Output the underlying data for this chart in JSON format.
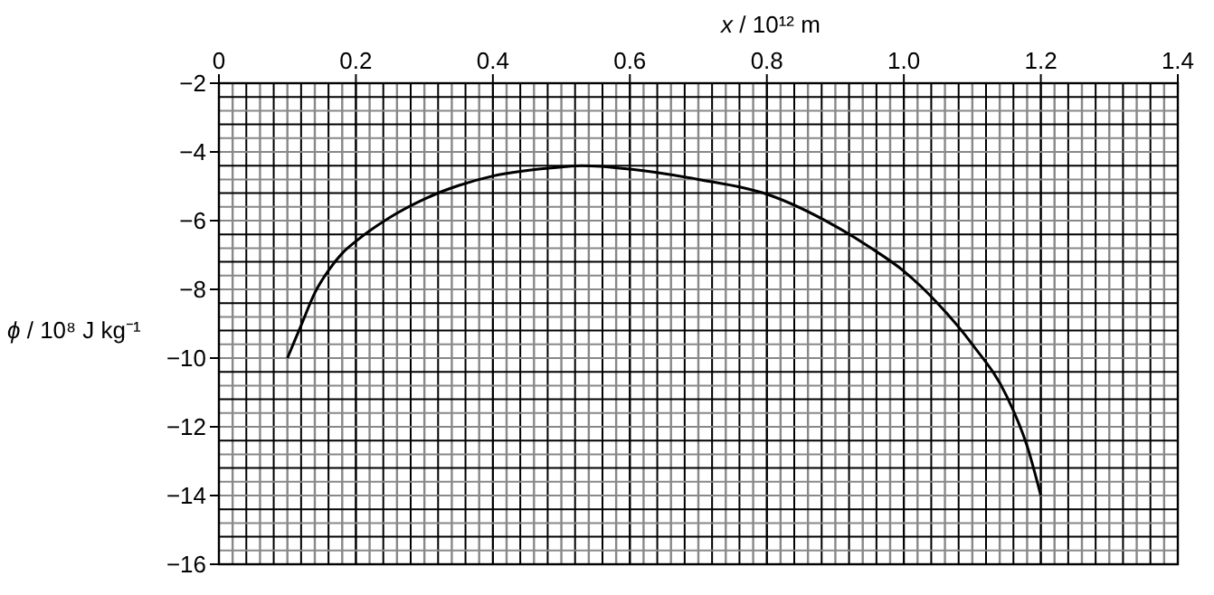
{
  "chart_data": {
    "type": "line",
    "xlabel": "x / 10¹² m",
    "ylabel": "ϕ / 10⁸ J kg⁻¹",
    "xlim": [
      0,
      1.4
    ],
    "ylim": [
      -16,
      -2
    ],
    "xticks": [
      0,
      0.2,
      0.4,
      0.6,
      0.8,
      {
        "value": 1,
        "label": "1.0"
      },
      1.2,
      1.4
    ],
    "yticks": [
      {
        "value": -2,
        "label": "−2"
      },
      {
        "value": -4,
        "label": "−4"
      },
      {
        "value": -6,
        "label": "−6"
      },
      {
        "value": -8,
        "label": "−8"
      },
      {
        "value": -10,
        "label": "−10"
      },
      {
        "value": -12,
        "label": "−12"
      },
      {
        "value": -14,
        "label": "−14"
      },
      {
        "value": -16,
        "label": "−16"
      }
    ],
    "grid": true,
    "marker": "none",
    "line_style": "solid",
    "series": [
      {
        "color": "#000000",
        "x": [
          0.1,
          0.12,
          0.14,
          0.16,
          0.18,
          0.2,
          0.25,
          0.3,
          0.4,
          0.5,
          0.53,
          0.6,
          0.7,
          0.8,
          0.9,
          0.95,
          1.0,
          1.05,
          1.1,
          1.15,
          1.18,
          1.2
        ],
        "values": [
          -10,
          -9.05,
          -8.1,
          -7.45,
          -6.95,
          -6.6,
          -5.9,
          -5.37,
          -4.7,
          -4.44,
          -4.4,
          -4.5,
          -4.8,
          -5.23,
          -6.16,
          -6.77,
          -7.47,
          -8.42,
          -9.6,
          -11.1,
          -12.56,
          -14
        ]
      }
    ]
  }
}
